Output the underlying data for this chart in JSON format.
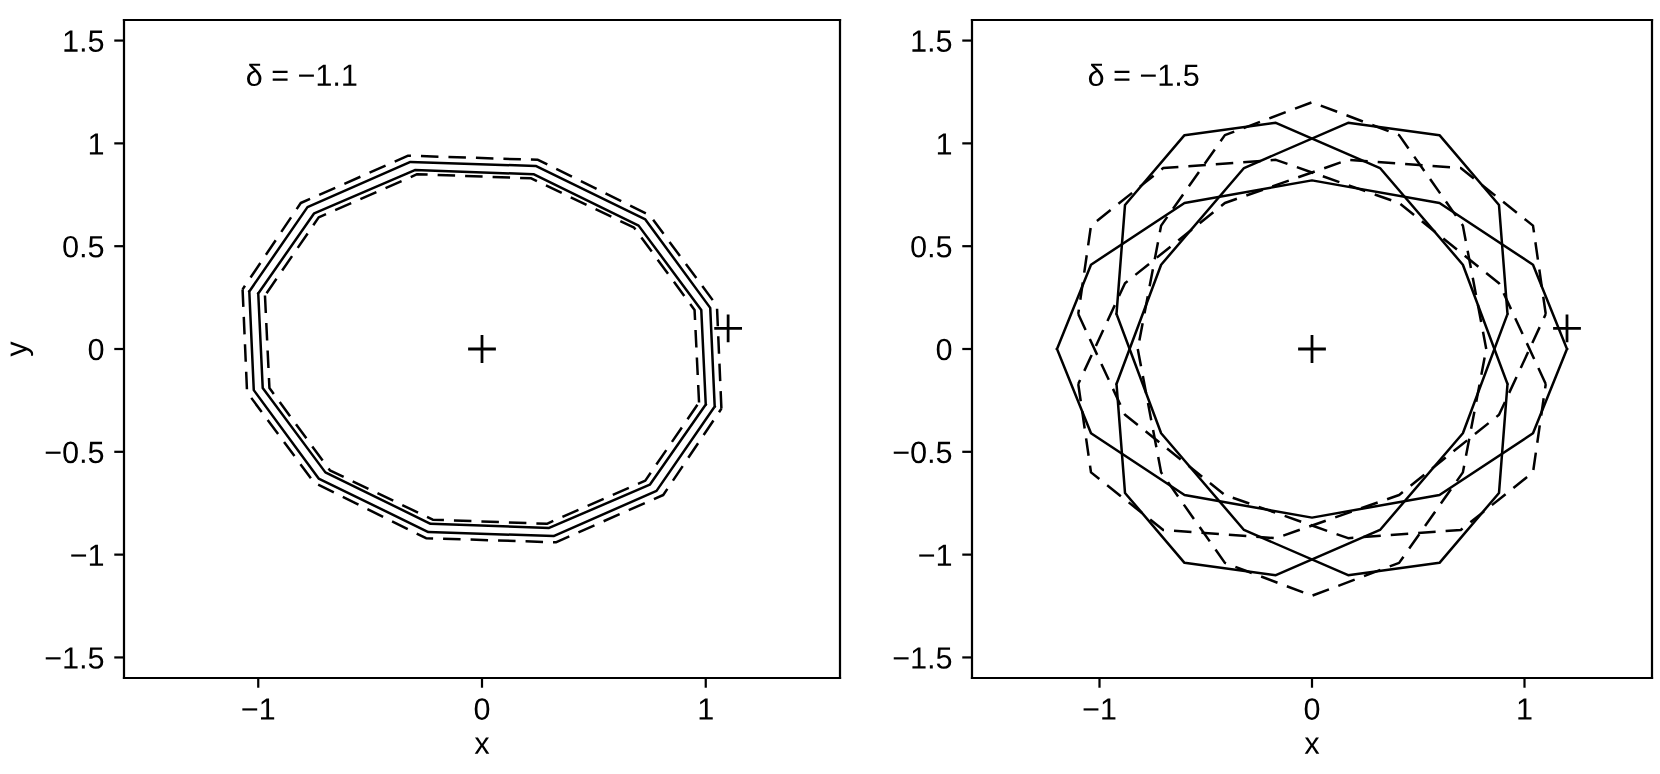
{
  "chart_data": [
    {
      "type": "line",
      "xlabel": "x",
      "ylabel": "y",
      "xlim": [
        -1.6,
        1.6
      ],
      "ylim": [
        -1.6,
        1.6
      ],
      "grid": false,
      "xticks": [
        {
          "value": -1,
          "label": "−1"
        },
        0,
        1
      ],
      "yticks": [
        {
          "value": -1.5,
          "label": "−1.5"
        },
        {
          "value": -1,
          "label": "−1"
        },
        {
          "value": -0.5,
          "label": "−0.5"
        },
        0,
        0.5,
        1,
        1.5
      ],
      "annotations": [
        "δ = −1.1"
      ],
      "series": [
        {
          "color": "#000000",
          "line_style": "solid",
          "x": [
            1.04,
            1.02,
            0.73,
            0.24,
            -0.32,
            -0.78,
            -1.04,
            null,
            -1.04,
            -1.02,
            -0.73,
            -0.24,
            0.32,
            0.78,
            1.04
          ],
          "values": [
            -0.28,
            0.2,
            0.63,
            0.89,
            0.91,
            0.69,
            0.28,
            null,
            0.28,
            -0.2,
            -0.63,
            -0.89,
            -0.91,
            -0.69,
            -0.28
          ]
        },
        {
          "color": "#000000",
          "line_style": "solid",
          "x": [
            1.0,
            0.98,
            0.7,
            0.23,
            -0.3,
            -0.75,
            -1.0,
            null,
            -1.0,
            -0.98,
            -0.7,
            -0.23,
            0.3,
            0.75,
            1.0
          ],
          "values": [
            -0.27,
            0.19,
            0.6,
            0.85,
            0.87,
            0.66,
            0.27,
            null,
            0.27,
            -0.19,
            -0.6,
            -0.85,
            -0.87,
            -0.66,
            -0.27
          ]
        },
        {
          "color": "#000000",
          "line_style": "dashed",
          "x": [
            1.07,
            1.05,
            0.75,
            0.25,
            -0.33,
            -0.81,
            -1.07,
            null,
            -1.07,
            -1.05,
            -0.75,
            -0.25,
            0.33,
            0.81,
            1.07
          ],
          "values": [
            -0.29,
            0.21,
            0.65,
            0.92,
            0.94,
            0.71,
            0.29,
            null,
            0.29,
            -0.21,
            -0.65,
            -0.92,
            -0.94,
            -0.71,
            -0.29
          ]
        },
        {
          "color": "#000000",
          "line_style": "dashed",
          "x": [
            0.97,
            0.95,
            0.68,
            0.22,
            -0.29,
            -0.73,
            -0.97,
            null,
            -0.97,
            -0.95,
            -0.68,
            -0.22,
            0.29,
            0.73,
            0.97
          ],
          "values": [
            -0.26,
            0.19,
            0.59,
            0.83,
            0.85,
            0.64,
            0.26,
            null,
            0.26,
            -0.19,
            -0.59,
            -0.83,
            -0.85,
            -0.64,
            -0.26
          ]
        },
        {
          "type": "scatter",
          "marker": "cross",
          "color": "#000000",
          "x": [
            0,
            1.1
          ],
          "values": [
            0,
            0.1
          ]
        }
      ]
    },
    {
      "type": "line",
      "xlabel": "x",
      "xlim": [
        -1.6,
        1.6
      ],
      "ylim": [
        -1.6,
        1.6
      ],
      "grid": false,
      "xticks": [
        {
          "value": -1,
          "label": "−1"
        },
        0,
        1
      ],
      "yticks": [
        {
          "value": -1.5,
          "label": "−1.5"
        },
        {
          "value": -1,
          "label": "−1"
        },
        {
          "value": -0.5,
          "label": "−0.5"
        },
        0,
        0.5,
        1,
        1.5
      ],
      "annotations": [
        "δ = −1.5"
      ],
      "series": [
        {
          "color": "#000000",
          "line_style": "solid",
          "x": [
            1.2,
            1.04,
            0.6,
            0,
            -0.6,
            -1.04,
            -1.2,
            null,
            -1.2,
            -1.04,
            -0.6,
            0,
            0.6,
            1.04,
            1.2
          ],
          "values": [
            0,
            0.41,
            0.71,
            0.82,
            0.71,
            0.41,
            0,
            null,
            0,
            -0.41,
            -0.71,
            -0.82,
            -0.71,
            -0.41,
            0
          ]
        },
        {
          "color": "#000000",
          "line_style": "solid",
          "x": [
            0.92,
            0.88,
            0.6,
            0.17,
            -0.32,
            -0.71,
            -0.92,
            null,
            -0.92,
            -0.88,
            -0.6,
            -0.17,
            0.32,
            0.71,
            0.92
          ],
          "values": [
            0.17,
            0.7,
            1.04,
            1.1,
            0.88,
            0.41,
            -0.17,
            null,
            -0.17,
            -0.7,
            -1.04,
            -1.1,
            -0.88,
            -0.41,
            0.17
          ]
        },
        {
          "color": "#000000",
          "line_style": "solid",
          "x": [
            -0.92,
            -0.71,
            -0.32,
            0.17,
            0.6,
            0.88,
            0.92,
            null,
            0.92,
            0.71,
            0.32,
            -0.17,
            -0.6,
            -0.88,
            -0.92
          ],
          "values": [
            0.17,
            -0.41,
            -0.88,
            -1.1,
            -1.04,
            -0.7,
            -0.17,
            null,
            -0.17,
            0.41,
            0.88,
            1.1,
            1.04,
            0.7,
            0.17
          ]
        },
        {
          "color": "#000000",
          "line_style": "dashed",
          "x": [
            1.1,
            1.04,
            0.7,
            0.17,
            -0.41,
            -0.88,
            -1.1,
            null,
            -1.1,
            -1.04,
            -0.7,
            -0.17,
            0.41,
            0.88,
            1.1
          ],
          "values": [
            0.17,
            0.6,
            0.88,
            0.92,
            0.71,
            0.32,
            -0.17,
            null,
            -0.17,
            -0.6,
            -0.88,
            -0.92,
            -0.71,
            -0.32,
            0.17
          ]
        },
        {
          "color": "#000000",
          "line_style": "dashed",
          "x": [
            0.82,
            0.71,
            0.41,
            0,
            -0.41,
            -0.71,
            -0.82,
            null,
            -0.82,
            -0.71,
            -0.41,
            0,
            0.41,
            0.71,
            0.82
          ],
          "values": [
            0,
            0.6,
            1.04,
            1.2,
            1.04,
            0.6,
            0,
            null,
            0,
            -0.6,
            -1.04,
            -1.2,
            -1.04,
            -0.6,
            0
          ]
        },
        {
          "color": "#000000",
          "line_style": "dashed",
          "x": [
            -1.1,
            -0.88,
            -0.41,
            0.17,
            0.7,
            1.04,
            1.1,
            null,
            1.1,
            0.88,
            0.41,
            -0.17,
            -0.7,
            -1.04,
            -1.1
          ],
          "values": [
            0.17,
            -0.32,
            -0.71,
            -0.92,
            -0.88,
            -0.6,
            -0.17,
            null,
            -0.17,
            0.32,
            0.71,
            0.92,
            0.88,
            0.6,
            0.17
          ]
        },
        {
          "type": "scatter",
          "marker": "cross",
          "color": "#000000",
          "x": [
            0,
            1.2
          ],
          "values": [
            0,
            0.1
          ]
        }
      ]
    }
  ]
}
